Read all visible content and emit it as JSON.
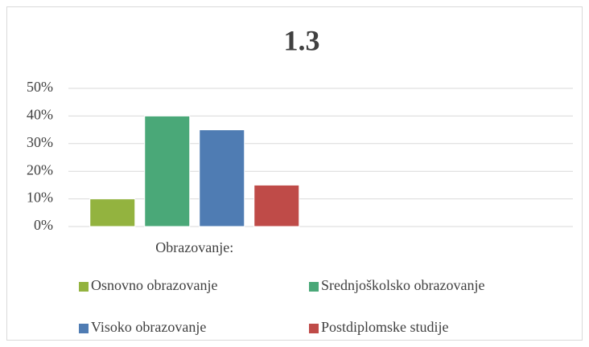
{
  "chart_data": {
    "type": "bar",
    "title": "1.3",
    "categories": [
      "Obrazovanje:",
      null
    ],
    "series": [
      {
        "name": "Osnovno obrazovanje",
        "color": "#93b33f",
        "values": [
          10,
          null
        ]
      },
      {
        "name": "Srednjoškolsko obrazovanje",
        "color": "#4aa878",
        "values": [
          40,
          null
        ]
      },
      {
        "name": "Visoko obrazovanje",
        "color": "#4f7cb3",
        "values": [
          35,
          null
        ]
      },
      {
        "name": "Postdiplomske studije",
        "color": "#bf4b48",
        "values": [
          15,
          null
        ]
      }
    ],
    "ylim": [
      0,
      50
    ],
    "yticks": [
      {
        "value": 0,
        "label": "0%"
      },
      {
        "value": 10,
        "label": "10%"
      },
      {
        "value": 20,
        "label": "20%"
      },
      {
        "value": 30,
        "label": "30%"
      },
      {
        "value": 40,
        "label": "40%"
      },
      {
        "value": 50,
        "label": "50%"
      }
    ],
    "grid": true,
    "legend": "bottom"
  }
}
